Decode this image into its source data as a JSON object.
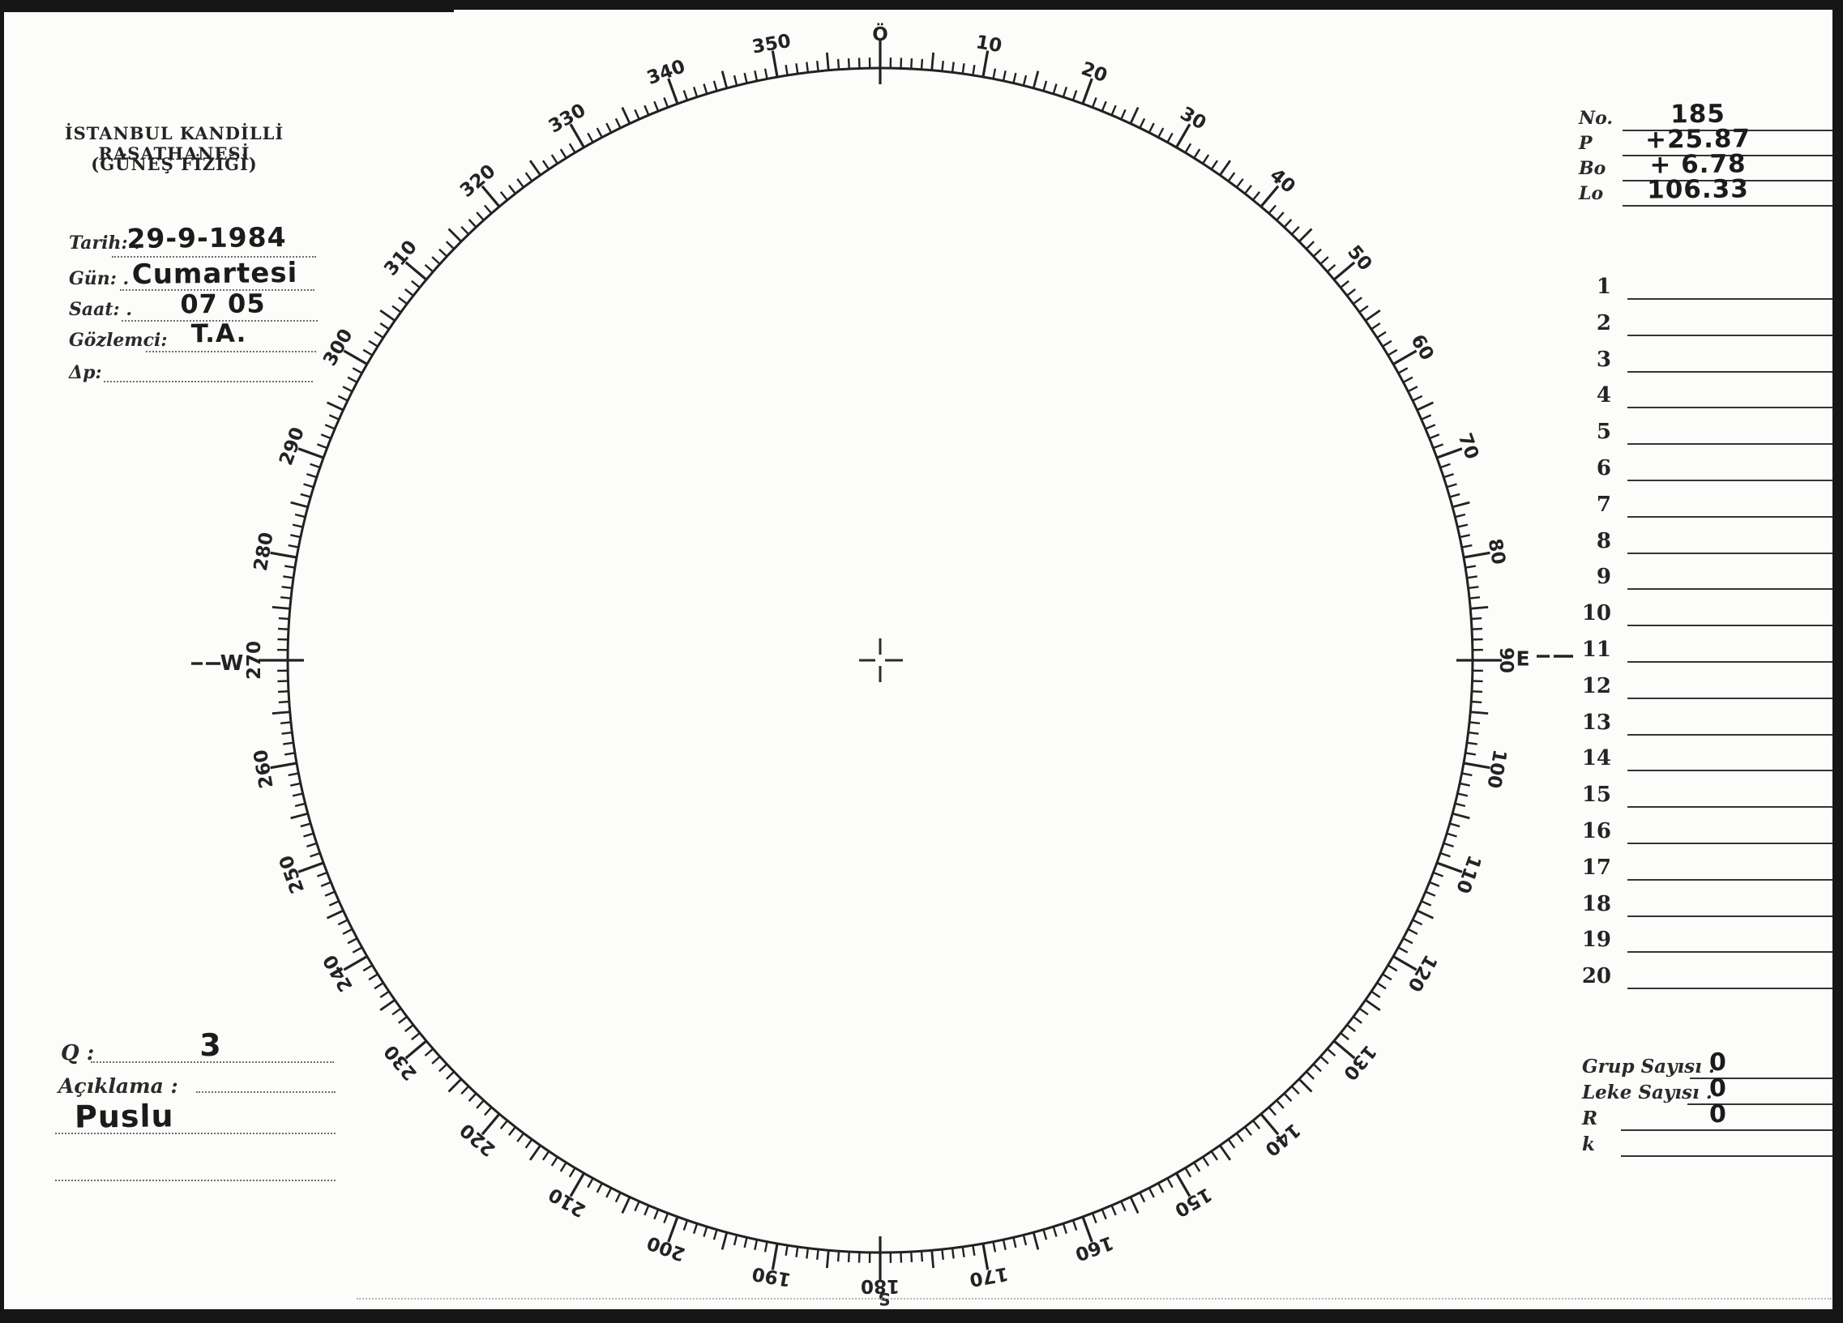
{
  "header": {
    "title": "İSTANBUL KANDİLLİ RASATHANESİ",
    "subtitle": "(GÜNEŞ FİZİĞİ)"
  },
  "fields": [
    {
      "id": "tarih",
      "label": "Tarih: .",
      "value": "29-9-1984"
    },
    {
      "id": "gun",
      "label": "Gün: .",
      "value": "Cumartesi"
    },
    {
      "id": "saat",
      "label": "Saat: .",
      "value": "07 05"
    },
    {
      "id": "gozlemci",
      "label": "Gözlemci:",
      "value": "T.A."
    },
    {
      "id": "dp",
      "label": "Δp:",
      "value": ""
    }
  ],
  "observation": {
    "rows": [
      {
        "label": "No.",
        "value": "185"
      },
      {
        "label": "P",
        "value": "+25.87"
      },
      {
        "label": "Bo",
        "value": "+ 6.78"
      },
      {
        "label": "Lo",
        "value": "106.33"
      }
    ]
  },
  "list": {
    "rows": [
      "1",
      "2",
      "3",
      "4",
      "5",
      "6",
      "7",
      "8",
      "9",
      "10",
      "11",
      "12",
      "13",
      "14",
      "15",
      "16",
      "17",
      "18",
      "19",
      "20"
    ]
  },
  "summary": {
    "rows": [
      {
        "label": "Grup Sayısı .",
        "value": "0"
      },
      {
        "label": "Leke Sayısı .",
        "value": "0"
      },
      {
        "label": "R",
        "value": "0"
      },
      {
        "label": "k",
        "value": ""
      }
    ]
  },
  "q_block": {
    "q_label": "Q :",
    "q_value": "3",
    "aciklama_label": "Açıklama :",
    "note": "Puslu"
  },
  "dial": {
    "degree_labels": [
      {
        "deg": 0,
        "text": "Ö"
      },
      {
        "deg": 10,
        "text": "10"
      },
      {
        "deg": 20,
        "text": "20"
      },
      {
        "deg": 30,
        "text": "30"
      },
      {
        "deg": 40,
        "text": "40"
      },
      {
        "deg": 50,
        "text": "50"
      },
      {
        "deg": 60,
        "text": "60"
      },
      {
        "deg": 70,
        "text": "70"
      },
      {
        "deg": 80,
        "text": "80"
      },
      {
        "deg": 90,
        "text": "90"
      },
      {
        "deg": 100,
        "text": "100"
      },
      {
        "deg": 110,
        "text": "110"
      },
      {
        "deg": 120,
        "text": "120"
      },
      {
        "deg": 130,
        "text": "130"
      },
      {
        "deg": 140,
        "text": "140"
      },
      {
        "deg": 150,
        "text": "150"
      },
      {
        "deg": 160,
        "text": "160"
      },
      {
        "deg": 170,
        "text": "170"
      },
      {
        "deg": 180,
        "text": "180"
      },
      {
        "deg": 190,
        "text": "190"
      },
      {
        "deg": 200,
        "text": "200"
      },
      {
        "deg": 210,
        "text": "210"
      },
      {
        "deg": 220,
        "text": "220"
      },
      {
        "deg": 230,
        "text": "230"
      },
      {
        "deg": 240,
        "text": "240"
      },
      {
        "deg": 250,
        "text": "250"
      },
      {
        "deg": 260,
        "text": "260"
      },
      {
        "deg": 270,
        "text": "270"
      },
      {
        "deg": 280,
        "text": "280"
      },
      {
        "deg": 290,
        "text": "290"
      },
      {
        "deg": 300,
        "text": "300"
      },
      {
        "deg": 310,
        "text": "310"
      },
      {
        "deg": 320,
        "text": "320"
      },
      {
        "deg": 330,
        "text": "330"
      },
      {
        "deg": 340,
        "text": "340"
      },
      {
        "deg": 350,
        "text": "350"
      }
    ],
    "west_letter": "W",
    "east_letter": "E",
    "south_marker": "S"
  },
  "colors": {
    "ink": "#222222",
    "paper": "#fcfcfa",
    "scan_edge": "#161616",
    "handwriting": "#1b1b1b"
  }
}
